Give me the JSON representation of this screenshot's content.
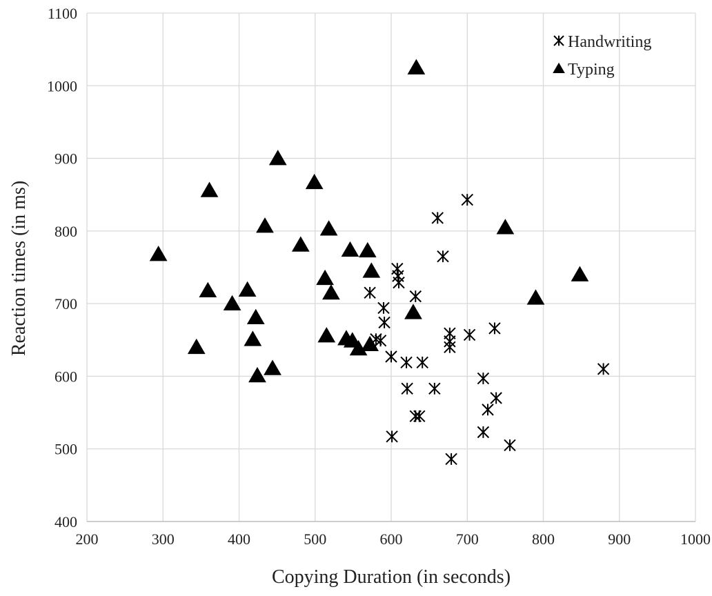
{
  "chart_data": {
    "type": "scatter",
    "title": "",
    "xlabel": "Copying Duration (in seconds)",
    "ylabel": "Reaction times (in ms)",
    "xlim": [
      200,
      1000
    ],
    "ylim": [
      400,
      1100
    ],
    "xticks": [
      "200",
      "300",
      "400",
      "500",
      "600",
      "700",
      "800",
      "900",
      "1000"
    ],
    "yticks": [
      "400",
      "500",
      "600",
      "700",
      "800",
      "900",
      "1000",
      "1100"
    ],
    "grid": true,
    "legend_position": "top-right",
    "series": [
      {
        "name": "Handwriting",
        "marker": "asterisk",
        "color": "#000000",
        "points": [
          [
            608,
            748
          ],
          [
            609,
            738
          ],
          [
            610,
            729
          ],
          [
            572,
            715
          ],
          [
            632,
            710
          ],
          [
            590,
            694
          ],
          [
            591,
            674
          ],
          [
            580,
            651
          ],
          [
            586,
            649
          ],
          [
            600,
            627
          ],
          [
            620,
            619
          ],
          [
            641,
            619
          ],
          [
            621,
            583
          ],
          [
            657,
            583
          ],
          [
            601,
            517
          ],
          [
            632,
            545
          ],
          [
            637,
            545
          ],
          [
            661,
            818
          ],
          [
            700,
            843
          ],
          [
            668,
            765
          ],
          [
            677,
            659
          ],
          [
            677,
            648
          ],
          [
            677,
            640
          ],
          [
            703,
            657
          ],
          [
            736,
            666
          ],
          [
            721,
            597
          ],
          [
            738,
            570
          ],
          [
            727,
            554
          ],
          [
            721,
            523
          ],
          [
            756,
            505
          ],
          [
            679,
            486
          ],
          [
            879,
            610
          ]
        ]
      },
      {
        "name": "Typing",
        "marker": "triangle",
        "color": "#000000",
        "points": [
          [
            294,
            767
          ],
          [
            344,
            639
          ],
          [
            359,
            717
          ],
          [
            361,
            855
          ],
          [
            391,
            699
          ],
          [
            411,
            718
          ],
          [
            418,
            650
          ],
          [
            422,
            680
          ],
          [
            424,
            600
          ],
          [
            434,
            806
          ],
          [
            444,
            610
          ],
          [
            451,
            899
          ],
          [
            481,
            780
          ],
          [
            499,
            866
          ],
          [
            513,
            734
          ],
          [
            515,
            655
          ],
          [
            518,
            802
          ],
          [
            521,
            714
          ],
          [
            541,
            651
          ],
          [
            546,
            773
          ],
          [
            549,
            648
          ],
          [
            557,
            637
          ],
          [
            569,
            772
          ],
          [
            572,
            643
          ],
          [
            574,
            744
          ],
          [
            629,
            687
          ],
          [
            633,
            1024
          ],
          [
            750,
            804
          ],
          [
            790,
            707
          ],
          [
            848,
            739
          ]
        ]
      }
    ]
  }
}
